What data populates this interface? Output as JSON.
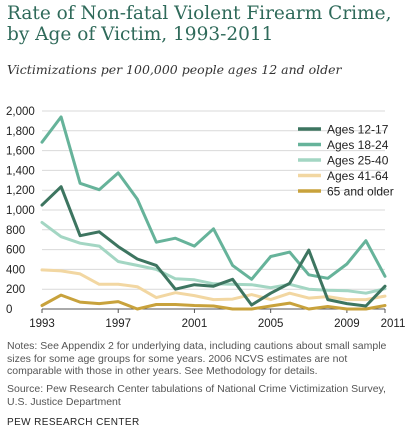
{
  "header": {
    "title": "Rate of Non-fatal Violent Firearm Crime, by Age of Victim, 1993-2011",
    "subtitle": "Victimizations per 100,000  people ages 12 and older"
  },
  "footer": {
    "note": "Notes: See Appendix 2 for underlying data, including cautions about small sample sizes for some age groups for some years. 2006 NCVS  estimates are not comparable with those in other years. See Methodology for details.",
    "source": "Source: Pew Research Center tabulations of National Crime Victimization Survey, U.S. Justice Department",
    "brand": "PEW RESEARCH CENTER"
  },
  "chart_data": {
    "type": "line",
    "x": [
      1993,
      1994,
      1995,
      1996,
      1997,
      1998,
      1999,
      2000,
      2001,
      2002,
      2003,
      2004,
      2005,
      2006,
      2007,
      2008,
      2009,
      2010,
      2011
    ],
    "x_tick_labels": [
      "1993",
      "1997",
      "2001",
      "2005",
      "2009",
      "2011"
    ],
    "x_tick_values": [
      1993,
      1997,
      2001,
      2005,
      2009,
      2011
    ],
    "ylim": [
      0,
      2000
    ],
    "y_ticks": [
      0,
      200,
      400,
      600,
      800,
      1000,
      1200,
      1400,
      1600,
      1800,
      2000
    ],
    "y_tick_labels": [
      "0",
      "200",
      "400",
      "600",
      "800",
      "1,000",
      "1,200",
      "1,400",
      "1,600",
      "1,800",
      "2,000"
    ],
    "grid": true,
    "legend_position": "top-right",
    "series": [
      {
        "name": "Ages 12-17",
        "color": "#3d7560",
        "values": [
          1050,
          1235,
          740,
          780,
          630,
          505,
          440,
          200,
          245,
          230,
          300,
          40,
          160,
          260,
          595,
          95,
          55,
          30,
          230
        ]
      },
      {
        "name": "Ages 18-24",
        "color": "#66b39a",
        "values": [
          1685,
          1940,
          1270,
          1205,
          1375,
          1110,
          675,
          715,
          635,
          810,
          440,
          300,
          530,
          575,
          345,
          310,
          455,
          690,
          330
        ]
      },
      {
        "name": "Ages 25-40",
        "color": "#a3d6c3",
        "values": [
          875,
          730,
          665,
          635,
          480,
          440,
          400,
          305,
          295,
          255,
          250,
          245,
          215,
          250,
          200,
          190,
          185,
          160,
          205
        ]
      },
      {
        "name": "Ages 41-64",
        "color": "#f2d7a2",
        "values": [
          395,
          385,
          355,
          250,
          250,
          225,
          115,
          165,
          135,
          95,
          100,
          145,
          95,
          160,
          110,
          125,
          95,
          95,
          130
        ]
      },
      {
        "name": "65 and older",
        "color": "#c8a23c",
        "values": [
          35,
          140,
          70,
          55,
          75,
          0,
          45,
          45,
          35,
          30,
          0,
          0,
          30,
          60,
          0,
          25,
          0,
          0,
          35
        ]
      }
    ]
  }
}
